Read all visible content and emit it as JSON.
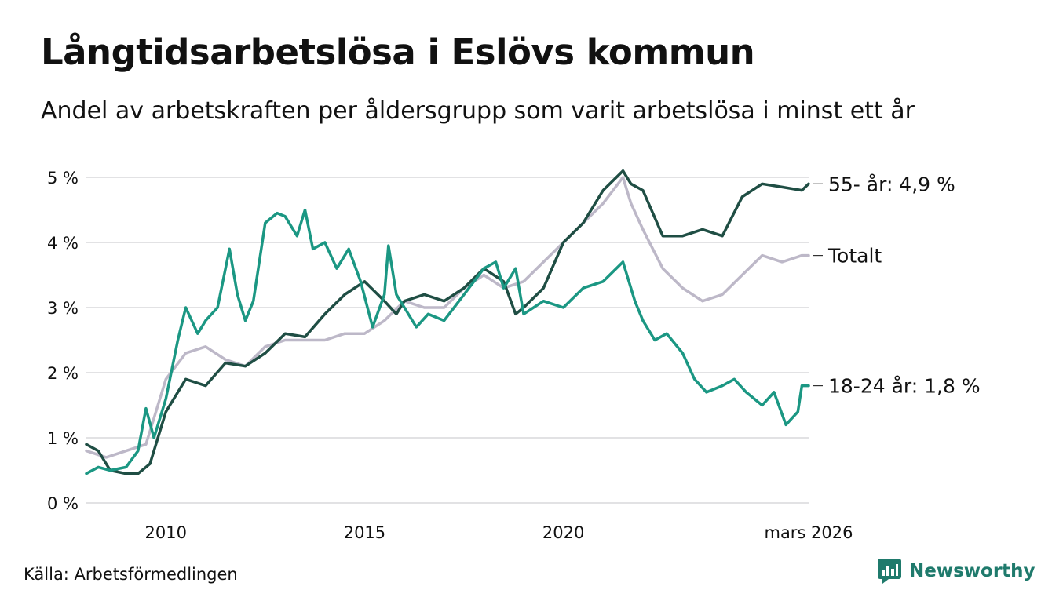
{
  "header": {
    "title": "Långtidsarbetslösa i Eslövs kommun",
    "subtitle": "Andel av arbetskraften per åldersgrupp som varit arbetslösa i minst ett år"
  },
  "footer": {
    "source": "Källa: Arbetsförmedlingen",
    "brand": "Newsworthy"
  },
  "colors": {
    "series_55": "#1f4e44",
    "series_total": "#bdb8c8",
    "series_18_24": "#1b9783",
    "grid": "#d8d8dc",
    "brand": "#1f7a6c"
  },
  "chart_data": {
    "type": "line",
    "title": "Långtidsarbetslösa i Eslövs kommun",
    "subtitle": "Andel av arbetskraften per åldersgrupp som varit arbetslösa i minst ett år",
    "xlabel": "",
    "ylabel": "",
    "x_unit": "year",
    "xlim": [
      2008.0,
      2026.17
    ],
    "ylim": [
      0,
      5.2
    ],
    "y_ticks": [
      0,
      1,
      2,
      3,
      4,
      5
    ],
    "y_tick_labels": [
      "0 %",
      "1 %",
      "2 %",
      "3 %",
      "4 %",
      "5 %"
    ],
    "x_ticks": [
      2010,
      2015,
      2020,
      2026.17
    ],
    "x_tick_labels": [
      "2010",
      "2015",
      "2020",
      "mars 2026"
    ],
    "grid": true,
    "series": [
      {
        "name": "Totalt",
        "end_label": "Totalt",
        "color_key": "series_total",
        "points": [
          [
            2008.0,
            0.8
          ],
          [
            2008.5,
            0.7
          ],
          [
            2009.0,
            0.8
          ],
          [
            2009.5,
            0.9
          ],
          [
            2010.0,
            1.9
          ],
          [
            2010.5,
            2.3
          ],
          [
            2011.0,
            2.4
          ],
          [
            2011.5,
            2.2
          ],
          [
            2012.0,
            2.1
          ],
          [
            2012.5,
            2.4
          ],
          [
            2013.0,
            2.5
          ],
          [
            2013.5,
            2.5
          ],
          [
            2014.0,
            2.5
          ],
          [
            2014.5,
            2.6
          ],
          [
            2015.0,
            2.6
          ],
          [
            2015.5,
            2.8
          ],
          [
            2016.0,
            3.1
          ],
          [
            2016.5,
            3.0
          ],
          [
            2017.0,
            3.0
          ],
          [
            2017.5,
            3.3
          ],
          [
            2018.0,
            3.5
          ],
          [
            2018.5,
            3.3
          ],
          [
            2019.0,
            3.4
          ],
          [
            2019.5,
            3.7
          ],
          [
            2020.0,
            4.0
          ],
          [
            2020.5,
            4.3
          ],
          [
            2021.0,
            4.6
          ],
          [
            2021.5,
            5.0
          ],
          [
            2021.7,
            4.6
          ],
          [
            2022.0,
            4.2
          ],
          [
            2022.5,
            3.6
          ],
          [
            2023.0,
            3.3
          ],
          [
            2023.5,
            3.1
          ],
          [
            2024.0,
            3.2
          ],
          [
            2024.5,
            3.5
          ],
          [
            2025.0,
            3.8
          ],
          [
            2025.5,
            3.7
          ],
          [
            2026.0,
            3.8
          ],
          [
            2026.17,
            3.8
          ]
        ]
      },
      {
        "name": "55- år",
        "end_label": "55- år: 4,9 %",
        "color_key": "series_55",
        "points": [
          [
            2008.0,
            0.9
          ],
          [
            2008.3,
            0.8
          ],
          [
            2008.6,
            0.5
          ],
          [
            2009.0,
            0.45
          ],
          [
            2009.3,
            0.45
          ],
          [
            2009.6,
            0.6
          ],
          [
            2010.0,
            1.4
          ],
          [
            2010.5,
            1.9
          ],
          [
            2011.0,
            1.8
          ],
          [
            2011.5,
            2.15
          ],
          [
            2012.0,
            2.1
          ],
          [
            2012.5,
            2.3
          ],
          [
            2013.0,
            2.6
          ],
          [
            2013.5,
            2.55
          ],
          [
            2014.0,
            2.9
          ],
          [
            2014.5,
            3.2
          ],
          [
            2015.0,
            3.4
          ],
          [
            2015.5,
            3.1
          ],
          [
            2015.8,
            2.9
          ],
          [
            2016.0,
            3.1
          ],
          [
            2016.5,
            3.2
          ],
          [
            2017.0,
            3.1
          ],
          [
            2017.5,
            3.3
          ],
          [
            2018.0,
            3.6
          ],
          [
            2018.5,
            3.4
          ],
          [
            2018.8,
            2.9
          ],
          [
            2019.0,
            3.0
          ],
          [
            2019.5,
            3.3
          ],
          [
            2020.0,
            4.0
          ],
          [
            2020.5,
            4.3
          ],
          [
            2021.0,
            4.8
          ],
          [
            2021.5,
            5.1
          ],
          [
            2021.7,
            4.9
          ],
          [
            2022.0,
            4.8
          ],
          [
            2022.5,
            4.1
          ],
          [
            2023.0,
            4.1
          ],
          [
            2023.5,
            4.2
          ],
          [
            2024.0,
            4.1
          ],
          [
            2024.5,
            4.7
          ],
          [
            2025.0,
            4.9
          ],
          [
            2025.5,
            4.85
          ],
          [
            2026.0,
            4.8
          ],
          [
            2026.17,
            4.9
          ]
        ]
      },
      {
        "name": "18-24 år",
        "end_label": "18-24 år: 1,8 %",
        "color_key": "series_18_24",
        "points": [
          [
            2008.0,
            0.45
          ],
          [
            2008.3,
            0.55
          ],
          [
            2008.6,
            0.5
          ],
          [
            2009.0,
            0.55
          ],
          [
            2009.3,
            0.8
          ],
          [
            2009.5,
            1.45
          ],
          [
            2009.7,
            1.0
          ],
          [
            2010.0,
            1.6
          ],
          [
            2010.3,
            2.5
          ],
          [
            2010.5,
            3.0
          ],
          [
            2010.8,
            2.6
          ],
          [
            2011.0,
            2.8
          ],
          [
            2011.3,
            3.0
          ],
          [
            2011.6,
            3.9
          ],
          [
            2011.8,
            3.2
          ],
          [
            2012.0,
            2.8
          ],
          [
            2012.2,
            3.1
          ],
          [
            2012.5,
            4.3
          ],
          [
            2012.8,
            4.45
          ],
          [
            2013.0,
            4.4
          ],
          [
            2013.3,
            4.1
          ],
          [
            2013.5,
            4.5
          ],
          [
            2013.7,
            3.9
          ],
          [
            2014.0,
            4.0
          ],
          [
            2014.3,
            3.6
          ],
          [
            2014.6,
            3.9
          ],
          [
            2014.9,
            3.4
          ],
          [
            2015.2,
            2.7
          ],
          [
            2015.5,
            3.2
          ],
          [
            2015.6,
            3.95
          ],
          [
            2015.8,
            3.2
          ],
          [
            2016.0,
            3.0
          ],
          [
            2016.3,
            2.7
          ],
          [
            2016.6,
            2.9
          ],
          [
            2017.0,
            2.8
          ],
          [
            2017.5,
            3.2
          ],
          [
            2018.0,
            3.6
          ],
          [
            2018.3,
            3.7
          ],
          [
            2018.5,
            3.3
          ],
          [
            2018.8,
            3.6
          ],
          [
            2019.0,
            2.9
          ],
          [
            2019.5,
            3.1
          ],
          [
            2020.0,
            3.0
          ],
          [
            2020.5,
            3.3
          ],
          [
            2021.0,
            3.4
          ],
          [
            2021.5,
            3.7
          ],
          [
            2021.8,
            3.1
          ],
          [
            2022.0,
            2.8
          ],
          [
            2022.3,
            2.5
          ],
          [
            2022.6,
            2.6
          ],
          [
            2023.0,
            2.3
          ],
          [
            2023.3,
            1.9
          ],
          [
            2023.6,
            1.7
          ],
          [
            2024.0,
            1.8
          ],
          [
            2024.3,
            1.9
          ],
          [
            2024.6,
            1.7
          ],
          [
            2025.0,
            1.5
          ],
          [
            2025.3,
            1.7
          ],
          [
            2025.6,
            1.2
          ],
          [
            2025.9,
            1.4
          ],
          [
            2026.0,
            1.8
          ],
          [
            2026.17,
            1.8
          ]
        ]
      }
    ]
  }
}
